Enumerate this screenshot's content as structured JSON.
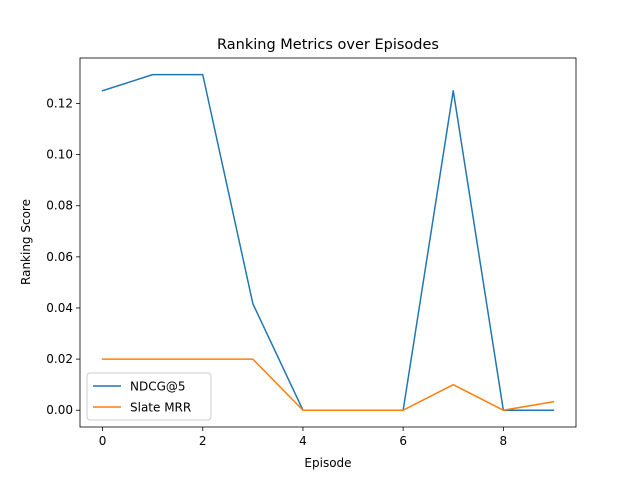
{
  "chart_data": {
    "type": "line",
    "title": "Ranking Metrics over Episodes",
    "xlabel": "Episode",
    "ylabel": "Ranking Score",
    "x": [
      0,
      1,
      2,
      3,
      4,
      5,
      6,
      7,
      8,
      9
    ],
    "xlim": [
      -0.45,
      9.45
    ],
    "ylim": [
      -0.00656,
      0.1378
    ],
    "xticks": [
      0,
      2,
      4,
      6,
      8
    ],
    "yticks": [
      0.0,
      0.02,
      0.04,
      0.06,
      0.08,
      0.1,
      0.12
    ],
    "xtick_labels": [
      "0",
      "2",
      "4",
      "6",
      "8"
    ],
    "ytick_labels": [
      "0.00",
      "0.02",
      "0.04",
      "0.06",
      "0.08",
      "0.10",
      "0.12"
    ],
    "grid": false,
    "legend_position": "lower-left",
    "series": [
      {
        "name": "NDCG@5",
        "color": "#1f77b4",
        "values": [
          0.125,
          0.1313,
          0.1313,
          0.0417,
          0.0,
          0.0,
          0.0,
          0.125,
          0.0,
          0.0
        ]
      },
      {
        "name": "Slate MRR",
        "color": "#ff7f0e",
        "values": [
          0.02,
          0.02,
          0.02,
          0.02,
          0.0,
          0.0,
          0.0,
          0.01,
          0.0,
          0.0033
        ]
      }
    ]
  }
}
